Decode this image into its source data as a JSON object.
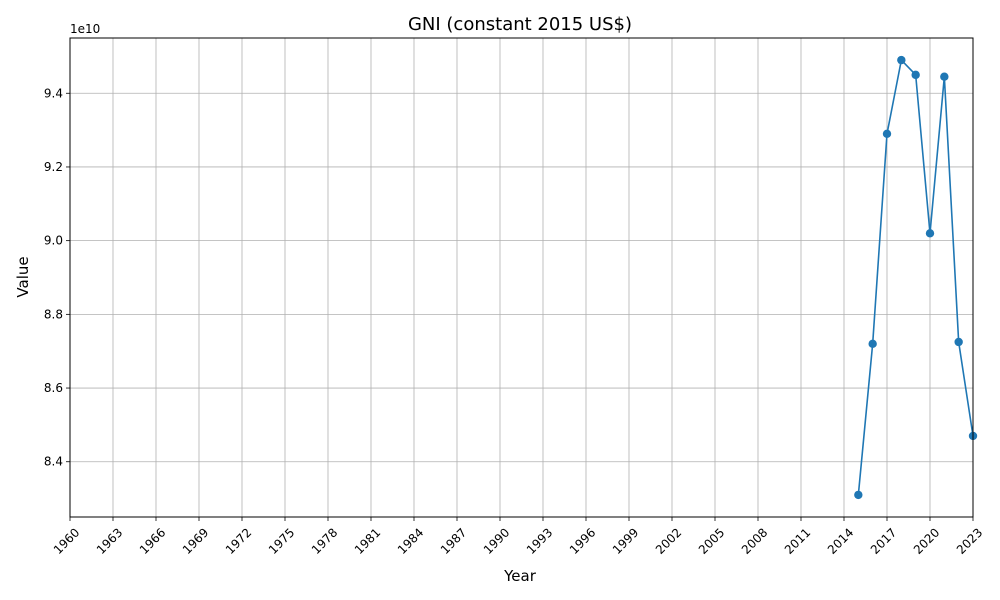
{
  "chart_data": {
    "type": "line",
    "title": "GNI (constant 2015 US$)",
    "xlabel": "Year",
    "ylabel": "Value",
    "y_offset_text": "1e10",
    "xlim": [
      1960,
      2023
    ],
    "ylim": [
      8.25,
      9.55
    ],
    "x_ticks": [
      1960,
      1963,
      1966,
      1969,
      1972,
      1975,
      1978,
      1981,
      1984,
      1987,
      1990,
      1993,
      1996,
      1999,
      2002,
      2005,
      2008,
      2011,
      2014,
      2017,
      2020,
      2023
    ],
    "y_ticks": [
      8.4,
      8.6,
      8.8,
      9.0,
      9.2,
      9.4
    ],
    "y_tick_labels": [
      "8.4",
      "8.6",
      "8.8",
      "9.0",
      "9.2",
      "9.4"
    ],
    "grid": true,
    "color": "#1f77b4",
    "marker": "circle",
    "series": [
      {
        "x": [
          2015,
          2016,
          2017,
          2018,
          2019,
          2020,
          2021,
          2022,
          2023
        ],
        "values": [
          8.31,
          8.72,
          9.29,
          9.49,
          9.45,
          9.02,
          9.445,
          8.725,
          8.47
        ]
      }
    ]
  }
}
